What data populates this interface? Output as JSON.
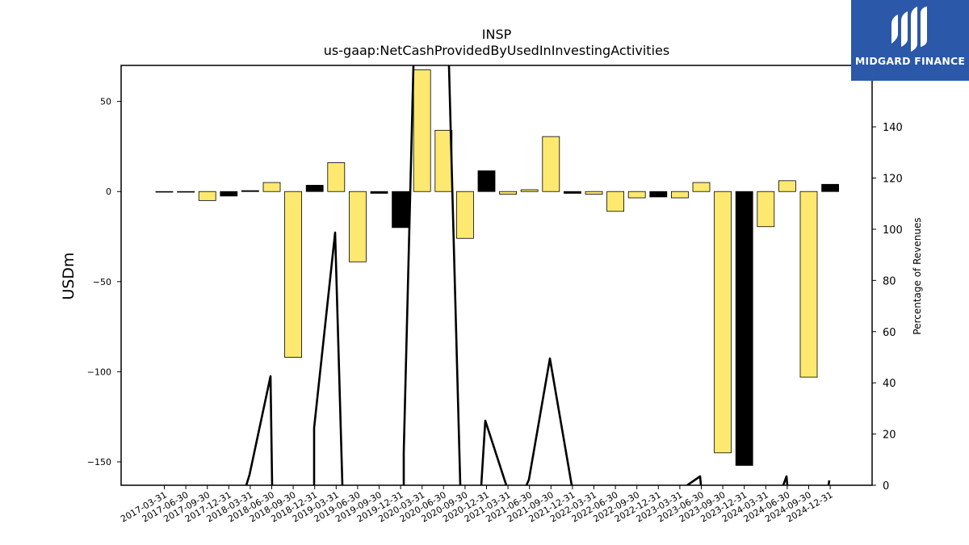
{
  "chart_data": {
    "type": "bar",
    "title": "INSP",
    "subtitle": "us-gaap:NetCashProvidedByUsedInInvestingActivities",
    "ylabel": "USDm",
    "y2label": "Percentage of Revenues",
    "ylim": [
      -163,
      70
    ],
    "y2lim": [
      0,
      164
    ],
    "yticks": [
      50,
      0,
      -50,
      -100,
      -150
    ],
    "y2ticks": [
      0,
      20,
      40,
      60,
      80,
      100,
      120,
      140
    ],
    "categories": [
      "2017-03-31",
      "2017-06-30",
      "2017-09-30",
      "2017-12-31",
      "2018-03-31",
      "2018-06-30",
      "2018-09-30",
      "2018-12-31",
      "2019-03-31",
      "2019-06-30",
      "2019-09-30",
      "2019-12-31",
      "2020-03-31",
      "2020-06-30",
      "2020-09-30",
      "2020-12-31",
      "2021-03-31",
      "2021-06-30",
      "2021-09-30",
      "2021-12-31",
      "2022-03-31",
      "2022-06-30",
      "2022-09-30",
      "2022-12-31",
      "2023-03-31",
      "2023-06-30",
      "2023-09-30",
      "2023-12-31",
      "2024-03-31",
      "2024-06-30",
      "2024-09-30",
      "2024-12-31"
    ],
    "values": [
      -0.3,
      -0.3,
      -5,
      -2.5,
      0.5,
      5,
      -92,
      3.5,
      16,
      -39,
      -1,
      -20,
      67.5,
      34,
      -26,
      11.5,
      -1.5,
      1,
      30.5,
      -1,
      -1.5,
      -11,
      -3.5,
      -3,
      -3.5,
      5,
      -145,
      -152,
      -19.5,
      6,
      -103,
      4
    ],
    "bar_colors": [
      "#fde96f",
      "#fde96f",
      "#fde96f",
      "#000000",
      "#000000",
      "#fde96f",
      "#fde96f",
      "#000000",
      "#fde96f",
      "#fde96f",
      "#000000",
      "#000000",
      "#fde96f",
      "#fde96f",
      "#fde96f",
      "#000000",
      "#fde96f",
      "#fde96f",
      "#fde96f",
      "#000000",
      "#fde96f",
      "#fde96f",
      "#fde96f",
      "#000000",
      "#fde96f",
      "#fde96f",
      "#fde96f",
      "#000000",
      "#fde96f",
      "#fde96f",
      "#fde96f",
      "#000000"
    ],
    "line_series": {
      "axis": "right",
      "values": [
        null,
        null,
        null,
        null,
        3,
        42,
        null,
        22,
        98,
        null,
        null,
        null,
        null,
        null,
        null,
        25,
        null,
        2,
        49,
        null,
        null,
        null,
        null,
        null,
        null,
        3.5,
        null,
        null,
        null,
        3,
        null,
        1.5
      ]
    },
    "grid": false
  },
  "logo": {
    "text": "MIDGARD FINANCE"
  }
}
